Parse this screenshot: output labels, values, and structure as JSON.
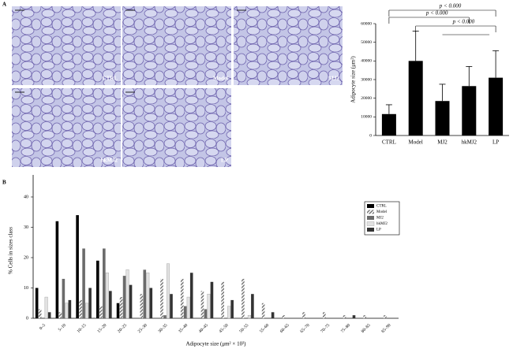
{
  "panel_labels": [
    "A",
    "B"
  ],
  "micrographs": [
    "CTRL",
    "Model",
    "MJ2",
    "hkMJ2",
    "LP"
  ],
  "chart_data": [
    {
      "type": "bar",
      "ylabel": "Adipocyte size (μm²)",
      "categories": [
        "CTRL",
        "Model",
        "MJ2",
        "hkMJ2",
        "LP"
      ],
      "values": [
        11500,
        40000,
        18500,
        26500,
        31000
      ],
      "errors": [
        5000,
        16000,
        9000,
        10500,
        14500
      ],
      "color": "#000000",
      "ylim": [
        0,
        60000
      ],
      "yticks": [
        0,
        10000,
        20000,
        30000,
        40000,
        50000,
        60000
      ],
      "annotations": [
        "p < 0.000",
        "p < 0.000",
        "p < 0.000"
      ]
    },
    {
      "type": "grouped-bar",
      "xlabel": "Adipocyte size (μm² × 10³)",
      "ylabel": "% Cells in sizes class",
      "categories": [
        "0–5",
        "5–10",
        "10–15",
        "15–20",
        "20–25",
        "25–30",
        "30–35",
        "35–40",
        "40–45",
        "45–50",
        "50–55",
        "55–60",
        "60–65",
        "65–70",
        "70–75",
        "75–80",
        "80–85",
        "85–90"
      ],
      "series": [
        {
          "name": "CTRL",
          "color": "#000000",
          "values": [
            10,
            32,
            34,
            19,
            5,
            0,
            0,
            0,
            0,
            0,
            0,
            0,
            0,
            0,
            0,
            0,
            0,
            0
          ]
        },
        {
          "name": "Model",
          "color": "hatched",
          "values": [
            3,
            2,
            6,
            4,
            7,
            8,
            13,
            13,
            9,
            12,
            13,
            5,
            1,
            2,
            2,
            1,
            1,
            1
          ]
        },
        {
          "name": "MJ2",
          "color": "#6b6b6b",
          "values": [
            0,
            13,
            23,
            23,
            14,
            16,
            1,
            4,
            3,
            0,
            0,
            0,
            0,
            0,
            0,
            0,
            0,
            0
          ]
        },
        {
          "name": "hkMJ2",
          "color": "#e2e2e2",
          "values": [
            7,
            5,
            5,
            15,
            16,
            15,
            18,
            7,
            8,
            4,
            1,
            0,
            0,
            0,
            0,
            0,
            0,
            0
          ]
        },
        {
          "name": "LP",
          "color": "#333333",
          "values": [
            2,
            6,
            10,
            9,
            11,
            10,
            8,
            15,
            12,
            6,
            8,
            2,
            0,
            0,
            0,
            1,
            0,
            0
          ]
        }
      ],
      "ylim": [
        0,
        40
      ],
      "yticks": [
        0,
        10,
        20,
        30,
        40
      ],
      "legend": "upper-right"
    }
  ]
}
